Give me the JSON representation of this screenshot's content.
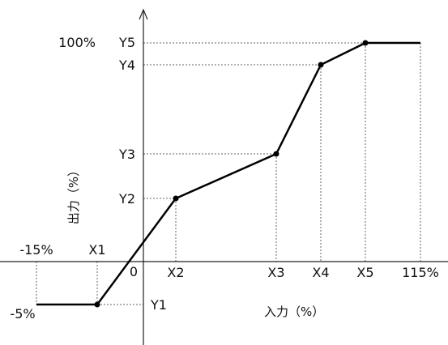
{
  "x_axis": {
    "title": "入力（%）",
    "labels": {
      "neg15": "-15%",
      "x1": "X1",
      "zero": "0",
      "x2": "X2",
      "x3": "X3",
      "x4": "X4",
      "x5": "X5",
      "p115": "115%"
    }
  },
  "y_axis": {
    "title": "出力（%）",
    "labels": {
      "p100": "100%",
      "y5": "Y5",
      "y4": "Y4",
      "y3": "Y3",
      "y2": "Y2",
      "y1": "Y1",
      "neg5": "-5%"
    }
  },
  "curve": {
    "points": [
      "(-15%, -5%)",
      "(X1, Y1)",
      "(X2, Y2)",
      "(X3, Y3)",
      "(X4, Y4)",
      "(X5, Y5)",
      "(115%, 100%)"
    ]
  }
}
